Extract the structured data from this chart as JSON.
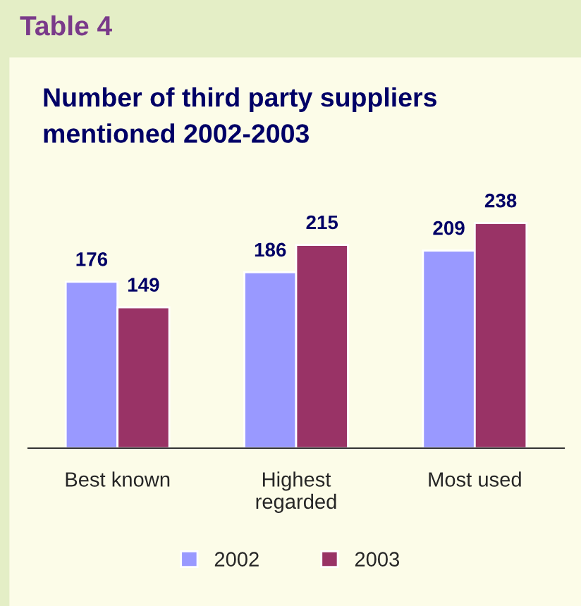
{
  "chart_data": {
    "type": "bar",
    "title": "Number of third party suppliers\nmentioned 2002-2003",
    "annotations": [
      "Table 4"
    ],
    "categories": [
      "Best known",
      "Highest\nregarded",
      "Most used"
    ],
    "series": [
      {
        "name": "2002",
        "color": "#9999ff",
        "values": [
          176,
          186,
          209
        ]
      },
      {
        "name": "2003",
        "color": "#993366",
        "values": [
          149,
          215,
          238
        ]
      }
    ],
    "data_labels": true,
    "grid": false,
    "legend": "bottom"
  }
}
